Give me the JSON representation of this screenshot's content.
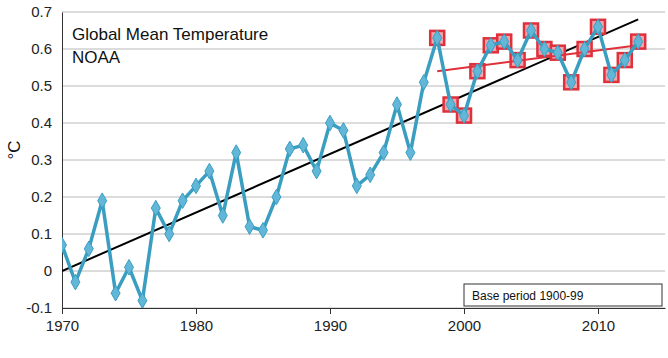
{
  "chart_data": {
    "type": "line",
    "title": "Global Mean Temperature",
    "subtitle": "NOAA",
    "y_label": "°C",
    "annotation": "Base period 1900-99",
    "x": [
      1970,
      1971,
      1972,
      1973,
      1974,
      1975,
      1976,
      1977,
      1978,
      1979,
      1980,
      1981,
      1982,
      1983,
      1984,
      1985,
      1986,
      1987,
      1988,
      1989,
      1990,
      1991,
      1992,
      1993,
      1994,
      1995,
      1996,
      1997,
      1998,
      1999,
      2000,
      2001,
      2002,
      2003,
      2004,
      2005,
      2006,
      2007,
      2008,
      2009,
      2010,
      2011,
      2012,
      2013
    ],
    "series": [
      {
        "type": "line",
        "color": "#000000",
        "marker": "none",
        "line_style": "solid",
        "x": [
          1970,
          2013
        ],
        "values": [
          0.0,
          0.68
        ]
      },
      {
        "type": "scatter",
        "color": "#e0303c",
        "marker": "square",
        "x": [
          1998,
          1999,
          2000,
          2001,
          2002,
          2003,
          2004,
          2005,
          2006,
          2007,
          2008,
          2009,
          2010,
          2011,
          2012,
          2013
        ],
        "values": [
          0.63,
          0.45,
          0.42,
          0.54,
          0.61,
          0.62,
          0.57,
          0.65,
          0.6,
          0.59,
          0.51,
          0.6,
          0.66,
          0.53,
          0.57,
          0.62
        ]
      },
      {
        "type": "line",
        "color": "#e0303c",
        "marker": "none",
        "line_style": "solid",
        "x": [
          1998,
          2013
        ],
        "values": [
          0.54,
          0.61
        ]
      },
      {
        "type": "line",
        "color": "#3a9ec1",
        "marker": "diamond",
        "line_style": "solid",
        "values": [
          0.07,
          -0.03,
          0.06,
          0.19,
          -0.06,
          0.01,
          -0.08,
          0.17,
          0.1,
          0.19,
          0.23,
          0.27,
          0.15,
          0.32,
          0.12,
          0.11,
          0.2,
          0.33,
          0.34,
          0.27,
          0.4,
          0.38,
          0.23,
          0.26,
          0.32,
          0.45,
          0.32,
          0.51,
          0.63,
          0.45,
          0.42,
          0.54,
          0.61,
          0.62,
          0.57,
          0.65,
          0.6,
          0.59,
          0.51,
          0.6,
          0.66,
          0.53,
          0.57,
          0.62
        ]
      }
    ],
    "xlim": [
      1970,
      2015
    ],
    "xticks": [
      1970,
      1980,
      1990,
      2000,
      2010
    ],
    "ylim": [
      -0.1,
      0.7
    ],
    "yticks": [
      -0.1,
      0,
      0.1,
      0.2,
      0.3,
      0.4,
      0.5,
      0.6,
      0.7
    ],
    "grid": true
  }
}
